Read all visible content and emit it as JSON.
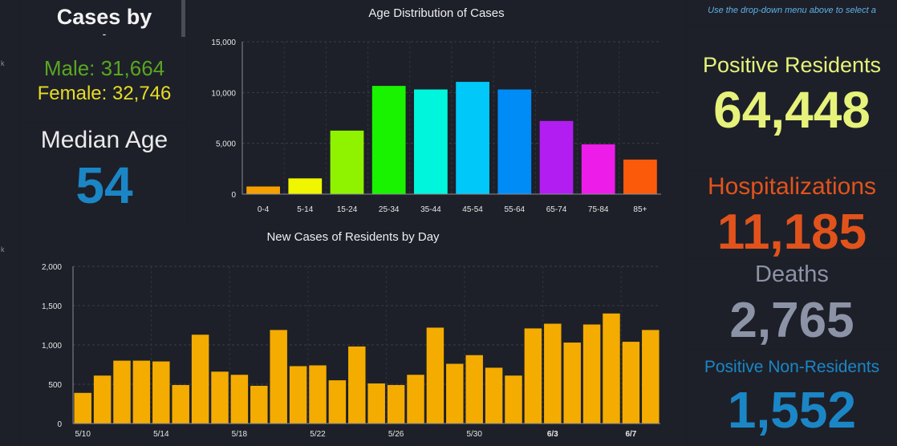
{
  "left_panel": {
    "cases_title": "Cases by",
    "cases_subtitle": "-",
    "male_text": "Male: 31,664",
    "female_text": "Female: 32,746",
    "median_age_label": "Median Age",
    "median_age_value": "54"
  },
  "right_panel": {
    "hint_text": "Use the drop-down menu above to select a",
    "positive_residents_label": "Positive Residents",
    "positive_residents_value": "64,448",
    "hospitalizations_label": "Hospitalizations",
    "hospitalizations_value": "11,185",
    "deaths_label": "Deaths",
    "deaths_value": "2,765",
    "non_residents_label": "Positive Non-Residents",
    "non_residents_value": "1,552"
  },
  "colors": {
    "male": "#5aa620",
    "female": "#e8dc23",
    "median": "#1b86c6",
    "positive_residents": "#e6f27a",
    "hospitalizations": "#e2531c",
    "deaths": "#8c93a6",
    "non_residents": "#1b86c6",
    "daily_bar": "#f5ac00"
  },
  "chart_data": [
    {
      "type": "bar",
      "title": "Age Distribution of Cases",
      "categories": [
        "0-4",
        "5-14",
        "15-24",
        "25-34",
        "35-44",
        "45-54",
        "55-64",
        "65-74",
        "75-84",
        "85+"
      ],
      "values": [
        750,
        1550,
        6250,
        10650,
        10300,
        11050,
        10300,
        7200,
        4900,
        3400
      ],
      "colors": [
        "#f5a000",
        "#f0f500",
        "#8ff300",
        "#19f300",
        "#00f6dc",
        "#00c8f8",
        "#008cf6",
        "#b21ef2",
        "#ee1ce8",
        "#fb5a0b"
      ],
      "ylim": [
        0,
        15000
      ],
      "yticks": [
        0,
        5000,
        10000,
        15000
      ],
      "ytick_labels": [
        "0",
        "5,000",
        "10,000",
        "15,000"
      ],
      "xlabel": "",
      "ylabel": ""
    },
    {
      "type": "bar",
      "title": "New Cases of Residents by Day",
      "values": [
        390,
        610,
        800,
        800,
        790,
        490,
        1130,
        660,
        620,
        480,
        1190,
        730,
        740,
        550,
        980,
        510,
        490,
        620,
        1220,
        760,
        870,
        710,
        610,
        1210,
        1270,
        1030,
        1260,
        1400,
        1040,
        1190
      ],
      "xtick_labels": [
        "5/10",
        "5/14",
        "5/18",
        "5/22",
        "5/26",
        "5/30",
        "6/3",
        "6/7"
      ],
      "xtick_bold": [
        false,
        false,
        false,
        false,
        false,
        false,
        true,
        true
      ],
      "xtick_every": 4,
      "ylim": [
        0,
        2000
      ],
      "yticks": [
        0,
        500,
        1000,
        1500,
        2000
      ],
      "ytick_labels": [
        "0",
        "500",
        "1,000",
        "1,500",
        "2,000"
      ],
      "xlabel": "",
      "ylabel": ""
    }
  ]
}
